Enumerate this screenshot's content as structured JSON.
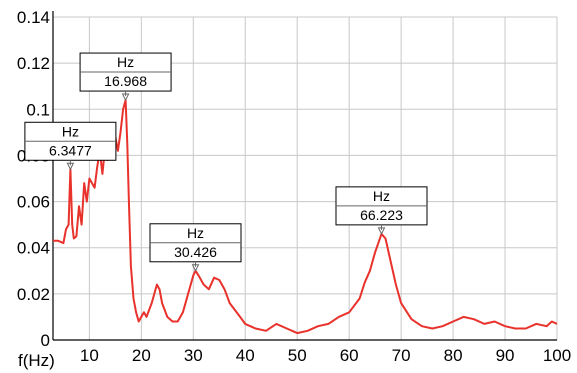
{
  "chart_data": {
    "type": "line",
    "title": "",
    "xlabel": "f(Hz)",
    "ylabel": "",
    "xlim": [
      3,
      100
    ],
    "ylim": [
      0,
      0.14
    ],
    "grid": true,
    "x_ticks": [
      10,
      20,
      30,
      40,
      50,
      60,
      70,
      80,
      90,
      100
    ],
    "x_tick_labels": [
      "10",
      "20",
      "30",
      "40",
      "50",
      "60",
      "70",
      "80",
      "90",
      "100"
    ],
    "y_ticks": [
      0,
      0.02,
      0.04,
      0.06,
      0.08,
      0.1,
      0.12,
      0.14
    ],
    "y_tick_labels": [
      "0",
      "0.02",
      "0.04",
      "0.06",
      "0.08",
      "0.1",
      "0.12",
      "0.14"
    ],
    "series": [
      {
        "color": "#e8322b",
        "x": [
          3,
          4,
          5,
          5.5,
          6,
          6.35,
          6.7,
          7,
          7.5,
          8,
          8.5,
          9,
          9.5,
          10,
          10.5,
          11,
          11.5,
          12,
          12.5,
          13,
          13.5,
          14,
          14.5,
          15,
          15.5,
          16,
          16.5,
          16.97,
          17.3,
          17.6,
          18,
          18.5,
          19,
          19.5,
          20,
          20.5,
          21,
          22,
          23,
          23.5,
          24,
          25,
          26,
          27,
          28,
          29,
          30,
          30.43,
          31,
          32,
          33,
          34,
          35,
          36,
          37,
          38,
          39,
          40,
          42,
          44,
          46,
          48,
          50,
          52,
          54,
          56,
          58,
          60,
          62,
          63,
          64,
          65,
          66.22,
          67,
          68,
          69,
          70,
          72,
          74,
          76,
          78,
          80,
          82,
          84,
          86,
          88,
          90,
          92,
          94,
          96,
          98,
          99,
          100
        ],
        "values": [
          0.043,
          0.043,
          0.042,
          0.048,
          0.05,
          0.074,
          0.05,
          0.044,
          0.045,
          0.058,
          0.05,
          0.068,
          0.06,
          0.07,
          0.068,
          0.066,
          0.075,
          0.082,
          0.072,
          0.083,
          0.078,
          0.085,
          0.08,
          0.088,
          0.082,
          0.09,
          0.1,
          0.104,
          0.085,
          0.06,
          0.032,
          0.018,
          0.012,
          0.008,
          0.01,
          0.012,
          0.01,
          0.016,
          0.024,
          0.022,
          0.016,
          0.01,
          0.008,
          0.008,
          0.012,
          0.02,
          0.028,
          0.03,
          0.028,
          0.024,
          0.022,
          0.027,
          0.026,
          0.022,
          0.016,
          0.013,
          0.01,
          0.007,
          0.005,
          0.004,
          0.007,
          0.005,
          0.003,
          0.004,
          0.006,
          0.007,
          0.01,
          0.012,
          0.018,
          0.025,
          0.03,
          0.038,
          0.046,
          0.044,
          0.034,
          0.024,
          0.016,
          0.009,
          0.006,
          0.005,
          0.006,
          0.008,
          0.01,
          0.009,
          0.007,
          0.008,
          0.006,
          0.005,
          0.005,
          0.007,
          0.006,
          0.008,
          0.007
        ]
      }
    ],
    "annotations": [
      {
        "unit": "Hz",
        "value": "6.3477",
        "x": 6.3477,
        "y": 0.074
      },
      {
        "unit": "Hz",
        "value": "16.968",
        "x": 16.968,
        "y": 0.104
      },
      {
        "unit": "Hz",
        "value": "30.426",
        "x": 30.426,
        "y": 0.03
      },
      {
        "unit": "Hz",
        "value": "66.223",
        "x": 66.223,
        "y": 0.046
      }
    ]
  }
}
